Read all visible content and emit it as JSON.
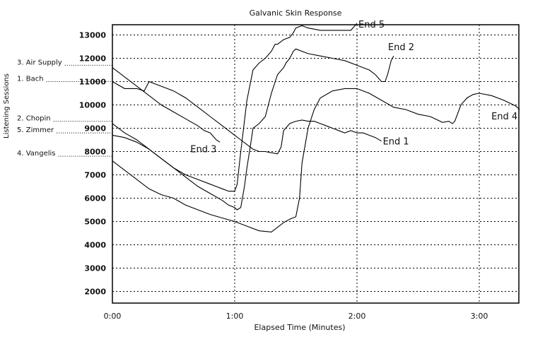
{
  "chart_data": {
    "type": "line",
    "title": "Galvanic Skin Response",
    "xlabel": "Elapsed Time (Minutes)",
    "ylabel": "Listening Sessions",
    "x_unit": "minutes",
    "xlim": [
      0,
      3.33
    ],
    "ylim": [
      1500,
      13500
    ],
    "x_ticks": [
      0,
      1,
      2,
      3
    ],
    "x_tick_labels": [
      "0:00",
      "1:00",
      "2:00",
      "3:00"
    ],
    "y_ticks": [
      2000,
      3000,
      4000,
      5000,
      6000,
      7000,
      8000,
      9000,
      10000,
      11000,
      12000,
      13000
    ],
    "y_tick_labels": [
      "2000",
      "3000",
      "4000",
      "5000",
      "6000",
      "7000",
      "8000",
      "9000",
      "10000",
      "11000",
      "12000",
      "13000"
    ],
    "grid": true,
    "session_labels": [
      {
        "label": "3. Air Supply",
        "y": 11700
      },
      {
        "label": "1. Bach",
        "y": 11000
      },
      {
        "label": "2. Chopin",
        "y": 9300
      },
      {
        "label": "5. Zimmer",
        "y": 8800
      },
      {
        "label": "4. Vangelis",
        "y": 7800
      }
    ],
    "series": [
      {
        "end_label": "End 1",
        "x": [
          0,
          0.1,
          0.2,
          0.26,
          0.3,
          0.4,
          0.5,
          0.6,
          0.7,
          0.8,
          0.9,
          1.0,
          1.05,
          1.1,
          1.15,
          1.2,
          1.25,
          1.3,
          1.35,
          1.38,
          1.4,
          1.45,
          1.5,
          1.55,
          1.6,
          1.65,
          1.7,
          1.75,
          1.8,
          1.85,
          1.9,
          1.95,
          2.0,
          2.05,
          2.1,
          2.15,
          2.2
        ],
        "y": [
          11000,
          10700,
          10700,
          10600,
          11000,
          10800,
          10600,
          10300,
          9900,
          9500,
          9100,
          8700,
          8500,
          8300,
          8100,
          8000,
          8000,
          7950,
          7900,
          8200,
          8900,
          9200,
          9300,
          9350,
          9300,
          9300,
          9200,
          9100,
          9000,
          8900,
          8800,
          8900,
          8800,
          8800,
          8700,
          8600,
          8450
        ]
      },
      {
        "end_label": "End 2",
        "x": [
          0,
          0.1,
          0.2,
          0.3,
          0.4,
          0.5,
          0.6,
          0.7,
          0.8,
          0.9,
          0.95,
          1.0,
          1.02,
          1.05,
          1.08,
          1.1,
          1.13,
          1.15,
          1.2,
          1.25,
          1.3,
          1.35,
          1.4,
          1.42,
          1.45,
          1.48,
          1.5,
          1.6,
          1.7,
          1.8,
          1.9,
          2.0,
          2.1,
          2.15,
          2.2,
          2.23,
          2.25,
          2.28,
          2.3
        ],
        "y": [
          8700,
          8600,
          8400,
          8100,
          7700,
          7300,
          6900,
          6500,
          6200,
          5900,
          5700,
          5600,
          5500,
          5600,
          6500,
          7300,
          8300,
          9000,
          9200,
          9500,
          10500,
          11300,
          11600,
          11800,
          12000,
          12300,
          12400,
          12200,
          12100,
          12000,
          11900,
          11700,
          11500,
          11300,
          11000,
          11000,
          11300,
          11900,
          12100
        ]
      },
      {
        "end_label": "End 3",
        "x": [
          0,
          0.05,
          0.1,
          0.2,
          0.3,
          0.4,
          0.5,
          0.6,
          0.7,
          0.75,
          0.8,
          0.85,
          0.88
        ],
        "y": [
          11600,
          11400,
          11200,
          10800,
          10400,
          10000,
          9700,
          9400,
          9100,
          8900,
          8800,
          8500,
          8400
        ]
      },
      {
        "end_label": "End 4",
        "x": [
          0,
          0.1,
          0.2,
          0.3,
          0.4,
          0.5,
          0.6,
          0.7,
          0.8,
          0.9,
          1.0,
          1.1,
          1.2,
          1.3,
          1.4,
          1.45,
          1.5,
          1.53,
          1.55,
          1.6,
          1.65,
          1.7,
          1.8,
          1.9,
          2.0,
          2.1,
          2.2,
          2.3,
          2.4,
          2.5,
          2.6,
          2.7,
          2.75,
          2.78,
          2.8,
          2.85,
          2.9,
          2.95,
          3.0,
          3.1,
          3.2,
          3.3,
          3.33
        ],
        "y": [
          7600,
          7200,
          6800,
          6400,
          6150,
          6000,
          5700,
          5500,
          5300,
          5150,
          5000,
          4800,
          4600,
          4550,
          4950,
          5100,
          5200,
          6000,
          7500,
          9000,
          9800,
          10300,
          10600,
          10700,
          10700,
          10500,
          10200,
          9900,
          9800,
          9600,
          9500,
          9250,
          9300,
          9200,
          9300,
          10000,
          10300,
          10450,
          10500,
          10400,
          10200,
          9950,
          9800
        ]
      },
      {
        "end_label": "End 5",
        "x": [
          0,
          0.1,
          0.2,
          0.3,
          0.4,
          0.5,
          0.6,
          0.7,
          0.8,
          0.85,
          0.9,
          0.95,
          1.0,
          1.02,
          1.05,
          1.1,
          1.15,
          1.2,
          1.25,
          1.3,
          1.33,
          1.35,
          1.4,
          1.45,
          1.48,
          1.5,
          1.55,
          1.6,
          1.7,
          1.8,
          1.9,
          1.95,
          2.0
        ],
        "y": [
          9200,
          8800,
          8500,
          8100,
          7700,
          7300,
          7000,
          6800,
          6600,
          6500,
          6400,
          6300,
          6300,
          6600,
          8000,
          10200,
          11500,
          11800,
          12000,
          12300,
          12600,
          12600,
          12800,
          12900,
          13100,
          13300,
          13400,
          13300,
          13200,
          13200,
          13200,
          13200,
          13500
        ]
      }
    ]
  }
}
